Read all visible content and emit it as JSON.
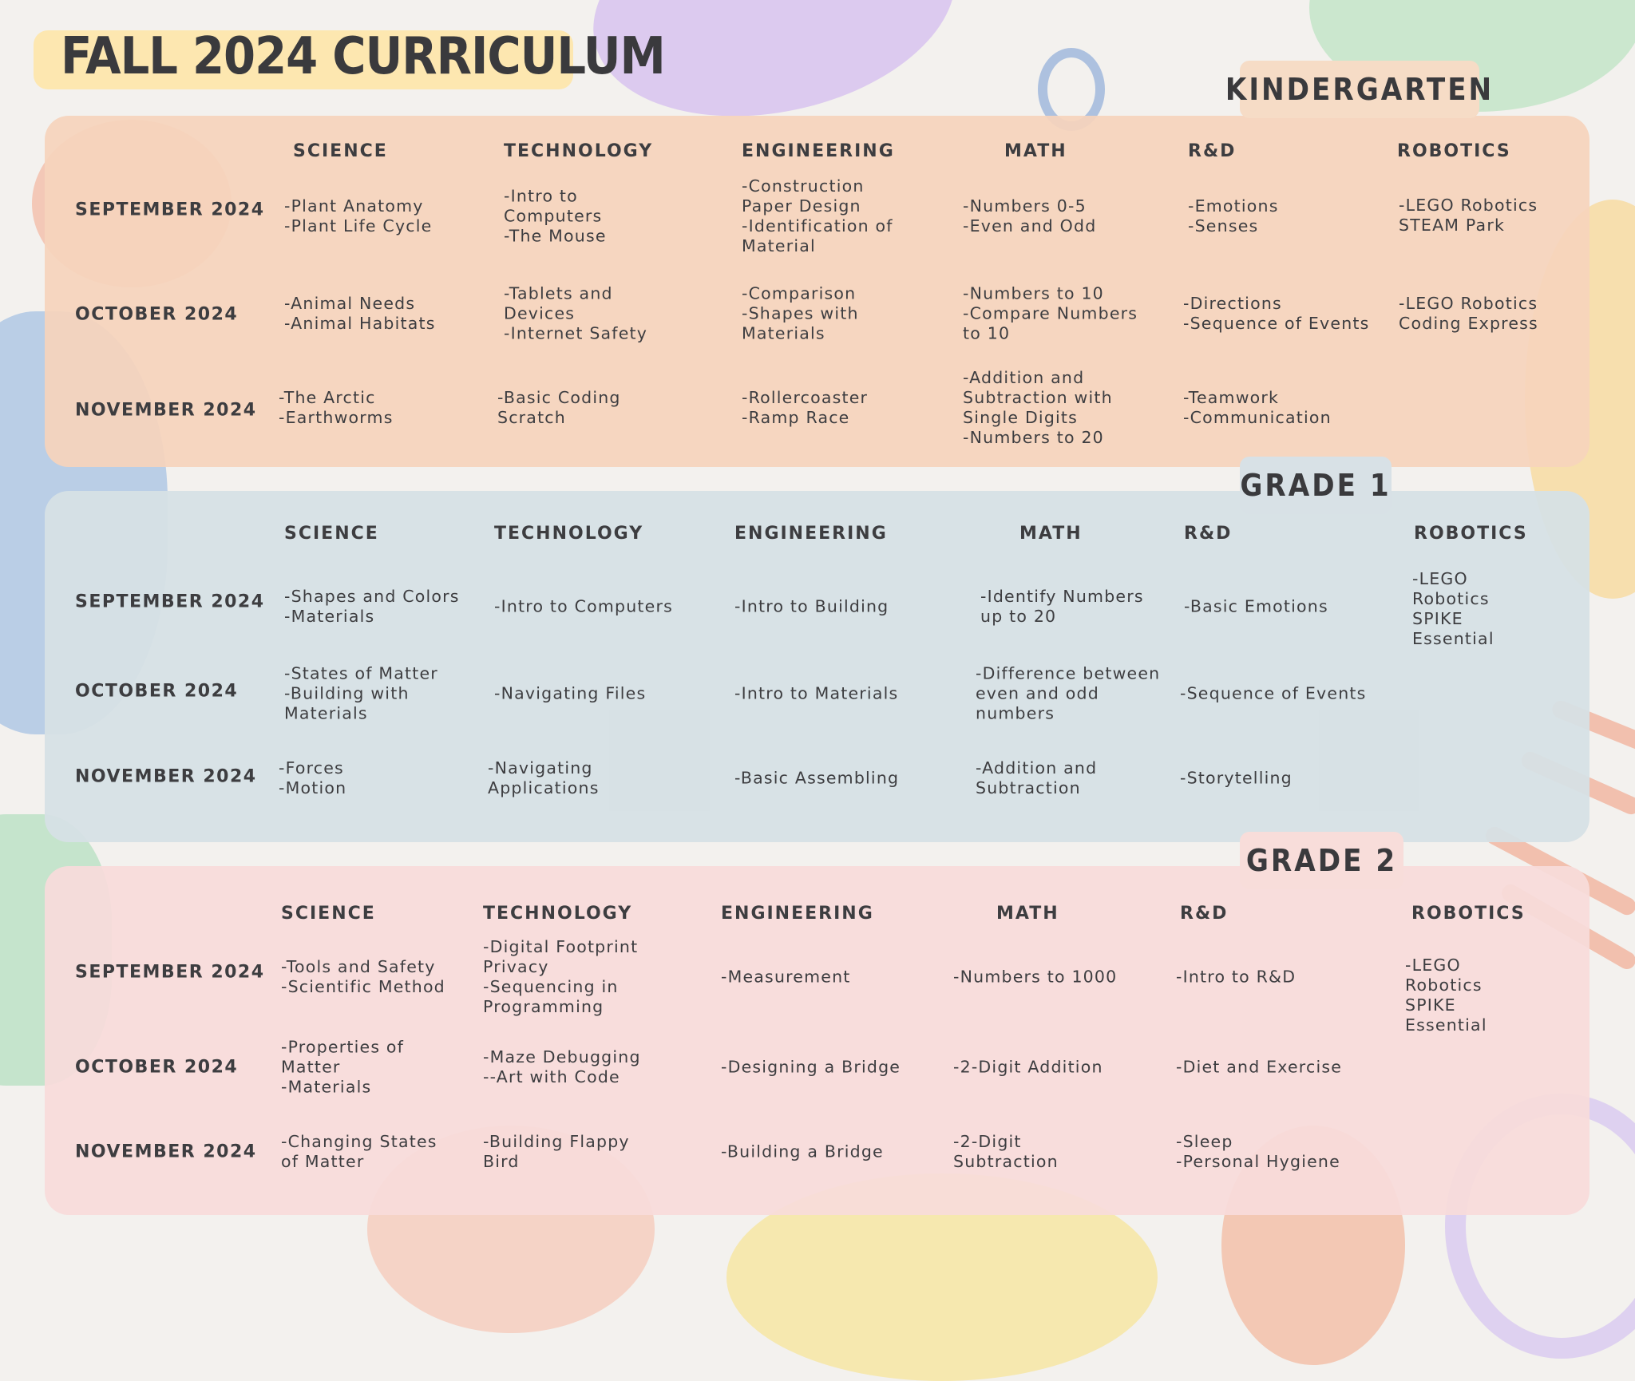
{
  "title": "FALL 2024 CURRICULUM",
  "colors": {
    "background": "#f3f1ee",
    "kindergarten_panel": "#f6d4bc",
    "grade1_panel": "#d6e0e5",
    "grade2_panel": "#f8dcda",
    "title_highlight": "#fde7b0",
    "text": "#3d3d40"
  },
  "sections": [
    {
      "label": "KINDERGARTEN",
      "columns": [
        "SCIENCE",
        "TECHNOLOGY",
        "ENGINEERING",
        "MATH",
        "R&D",
        "ROBOTICS"
      ],
      "rows": [
        {
          "month": "SEPTEMBER 2024",
          "cells": [
            "-Plant Anatomy\n-Plant Life Cycle",
            "-Intro to\nComputers\n-The Mouse",
            "-Construction\nPaper Design\n-Identification of\nMaterial",
            "-Numbers 0-5\n-Even and Odd",
            "-Emotions\n-Senses",
            "-LEGO Robotics\nSTEAM Park"
          ]
        },
        {
          "month": "OCTOBER 2024",
          "cells": [
            "-Animal Needs\n-Animal Habitats",
            "-Tablets and\nDevices\n-Internet Safety",
            "-Comparison\n-Shapes with\nMaterials",
            "-Numbers to 10\n-Compare Numbers\nto 10",
            "-Directions\n-Sequence of Events",
            "-LEGO Robotics\nCoding Express"
          ]
        },
        {
          "month": "NOVEMBER 2024",
          "cells": [
            "-The Arctic\n-Earthworms",
            "-Basic Coding\nScratch",
            "-Rollercoaster\n-Ramp Race",
            "-Addition and\nSubtraction with\nSingle Digits\n-Numbers to 20",
            "-Teamwork\n-Communication",
            ""
          ]
        }
      ]
    },
    {
      "label": "GRADE 1",
      "columns": [
        "SCIENCE",
        "TECHNOLOGY",
        "ENGINEERING",
        "MATH",
        "R&D",
        "ROBOTICS"
      ],
      "rows": [
        {
          "month": "SEPTEMBER 2024",
          "cells": [
            "-Shapes and Colors\n-Materials",
            "-Intro to Computers",
            "-Intro to Building",
            "-Identify Numbers\nup to 20",
            "-Basic Emotions",
            "-LEGO\nRobotics\nSPIKE\nEssential"
          ]
        },
        {
          "month": "OCTOBER 2024",
          "cells": [
            "-States of Matter\n-Building with\nMaterials",
            "-Navigating Files",
            "-Intro to Materials",
            "-Difference between\neven and odd\nnumbers",
            "-Sequence of Events",
            ""
          ]
        },
        {
          "month": "NOVEMBER 2024",
          "cells": [
            "-Forces\n-Motion",
            "-Navigating\nApplications",
            "-Basic Assembling",
            "-Addition and\nSubtraction",
            "-Storytelling",
            ""
          ]
        }
      ]
    },
    {
      "label": "GRADE 2",
      "columns": [
        "SCIENCE",
        "TECHNOLOGY",
        "ENGINEERING",
        "MATH",
        "R&D",
        "ROBOTICS"
      ],
      "rows": [
        {
          "month": "SEPTEMBER 2024",
          "cells": [
            "-Tools and Safety\n-Scientific Method",
            "-Digital Footprint\nPrivacy\n-Sequencing in\nProgramming",
            "-Measurement",
            "-Numbers to 1000",
            "-Intro to R&D",
            "-LEGO\nRobotics\nSPIKE\nEssential"
          ]
        },
        {
          "month": "OCTOBER 2024",
          "cells": [
            "-Properties of\nMatter\n-Materials",
            "-Maze Debugging\n--Art with Code",
            "-Designing a Bridge",
            "-2-Digit Addition",
            "-Diet and Exercise",
            ""
          ]
        },
        {
          "month": "NOVEMBER 2024",
          "cells": [
            "-Changing States\nof Matter",
            "-Building Flappy\nBird",
            "-Building a Bridge",
            "-2-Digit\nSubtraction",
            "-Sleep\n-Personal Hygiene",
            ""
          ]
        }
      ]
    }
  ]
}
